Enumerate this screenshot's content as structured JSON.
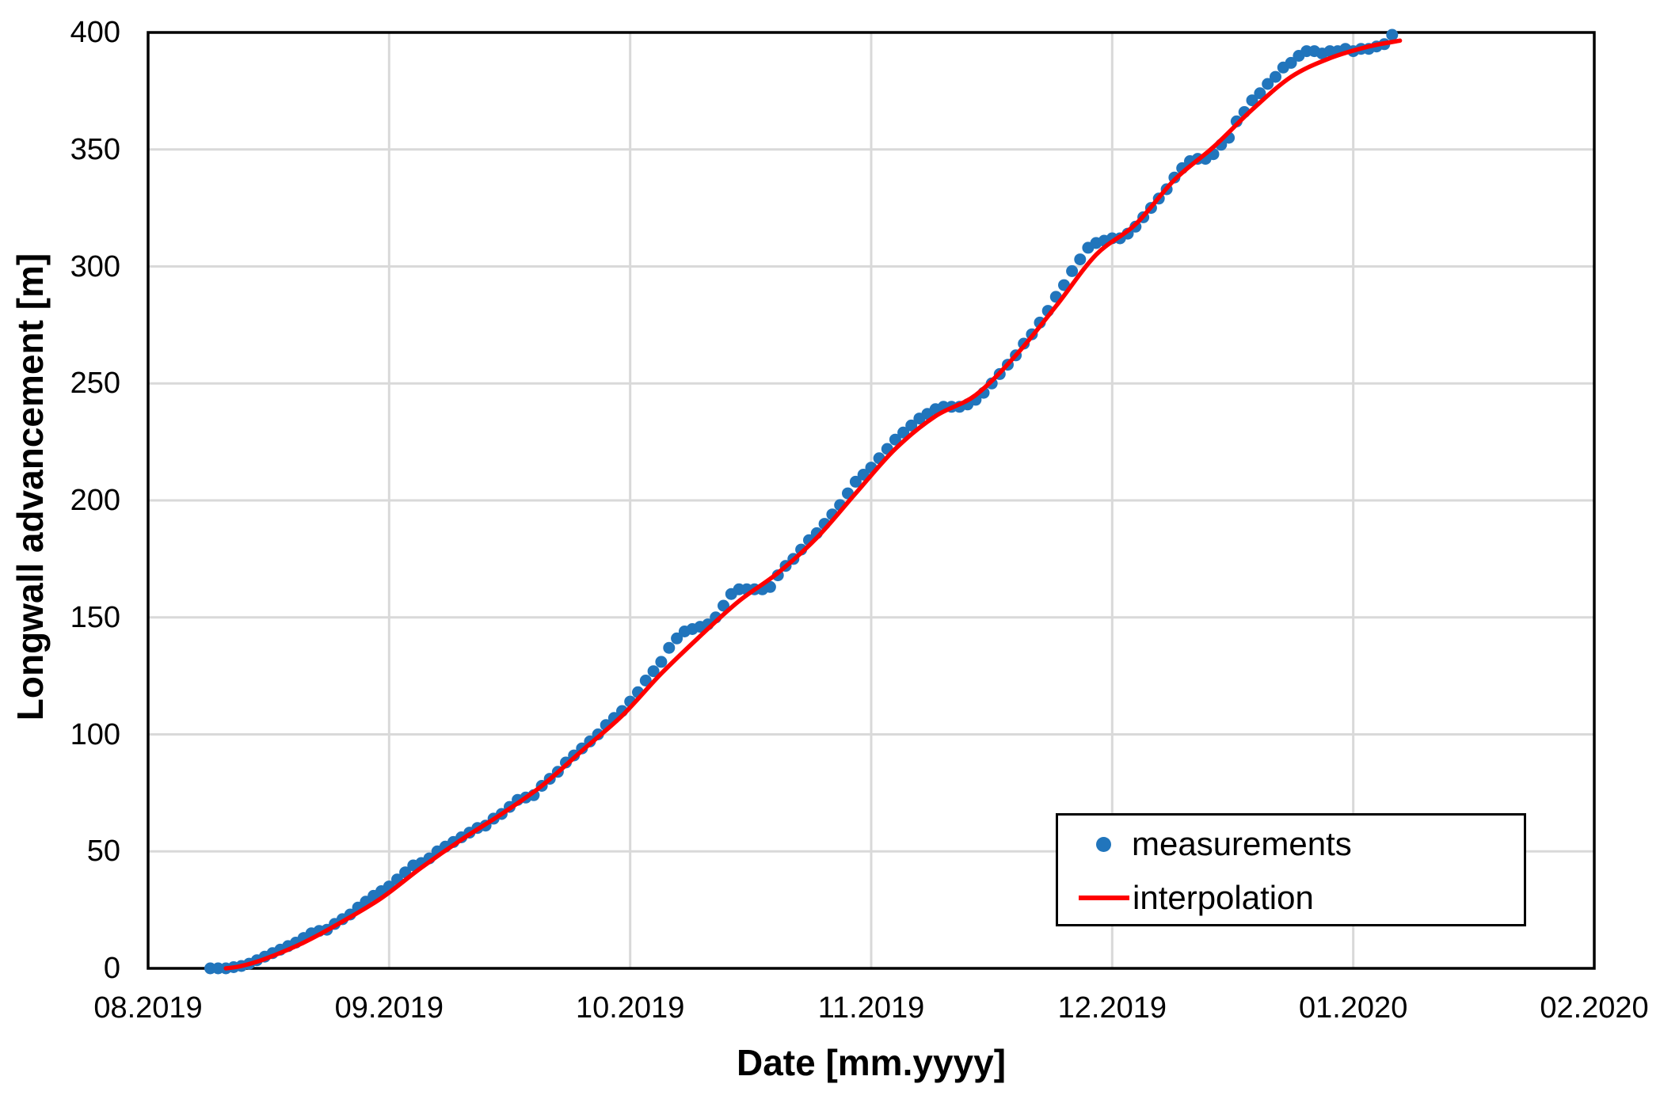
{
  "chart_data": {
    "type": "scatter",
    "title": "",
    "xlabel": "Date [mm.yyyy]",
    "ylabel": "Longwall advancement [m]",
    "x_ticks": [
      "08.2019",
      "09.2019",
      "10.2019",
      "11.2019",
      "12.2019",
      "01.2020",
      "02.2020"
    ],
    "y_ticks": [
      0,
      50,
      100,
      150,
      200,
      250,
      300,
      350,
      400
    ],
    "ylim": [
      0,
      400
    ],
    "grid": true,
    "colors": {
      "grid": "#D9D9D9",
      "axis": "#000000",
      "background": "#FFFFFF"
    },
    "legend": {
      "position": "inside-bottom-right",
      "entries": [
        {
          "label": "measurements",
          "marker": "dot",
          "color": "#2175BC"
        },
        {
          "label": "interpolation",
          "marker": "line",
          "color": "#FF0000"
        }
      ]
    },
    "series": [
      {
        "name": "measurements",
        "type": "scatter",
        "color": "#2175BC",
        "points": [
          [
            "2019-08-09",
            0
          ],
          [
            "2019-08-10",
            0
          ],
          [
            "2019-08-11",
            0
          ],
          [
            "2019-08-12",
            0.5
          ],
          [
            "2019-08-13",
            1
          ],
          [
            "2019-08-14",
            2
          ],
          [
            "2019-08-15",
            3.5
          ],
          [
            "2019-08-16",
            5
          ],
          [
            "2019-08-17",
            6.5
          ],
          [
            "2019-08-18",
            8
          ],
          [
            "2019-08-19",
            9.5
          ],
          [
            "2019-08-20",
            11
          ],
          [
            "2019-08-21",
            13
          ],
          [
            "2019-08-22",
            15
          ],
          [
            "2019-08-23",
            16
          ],
          [
            "2019-08-24",
            16.5
          ],
          [
            "2019-08-25",
            19
          ],
          [
            "2019-08-26",
            21
          ],
          [
            "2019-08-27",
            23
          ],
          [
            "2019-08-28",
            26
          ],
          [
            "2019-08-29",
            28.5
          ],
          [
            "2019-08-30",
            31
          ],
          [
            "2019-08-31",
            33
          ],
          [
            "2019-09-01",
            35
          ],
          [
            "2019-09-02",
            38
          ],
          [
            "2019-09-03",
            41
          ],
          [
            "2019-09-04",
            44
          ],
          [
            "2019-09-05",
            45
          ],
          [
            "2019-09-06",
            47
          ],
          [
            "2019-09-07",
            50
          ],
          [
            "2019-09-08",
            52
          ],
          [
            "2019-09-09",
            54
          ],
          [
            "2019-09-10",
            56
          ],
          [
            "2019-09-11",
            58
          ],
          [
            "2019-09-12",
            60
          ],
          [
            "2019-09-13",
            61
          ],
          [
            "2019-09-14",
            64
          ],
          [
            "2019-09-15",
            66
          ],
          [
            "2019-09-16",
            69
          ],
          [
            "2019-09-17",
            72
          ],
          [
            "2019-09-18",
            73
          ],
          [
            "2019-09-19",
            74
          ],
          [
            "2019-09-20",
            78
          ],
          [
            "2019-09-21",
            81
          ],
          [
            "2019-09-22",
            84
          ],
          [
            "2019-09-23",
            88
          ],
          [
            "2019-09-24",
            91
          ],
          [
            "2019-09-25",
            94
          ],
          [
            "2019-09-26",
            97
          ],
          [
            "2019-09-27",
            100
          ],
          [
            "2019-09-28",
            104
          ],
          [
            "2019-09-29",
            107
          ],
          [
            "2019-09-30",
            110
          ],
          [
            "2019-10-01",
            114
          ],
          [
            "2019-10-02",
            118
          ],
          [
            "2019-10-03",
            123
          ],
          [
            "2019-10-04",
            127
          ],
          [
            "2019-10-05",
            131
          ],
          [
            "2019-10-06",
            137
          ],
          [
            "2019-10-07",
            141
          ],
          [
            "2019-10-08",
            144
          ],
          [
            "2019-10-09",
            145
          ],
          [
            "2019-10-10",
            146
          ],
          [
            "2019-10-11",
            147
          ],
          [
            "2019-10-12",
            150
          ],
          [
            "2019-10-13",
            155
          ],
          [
            "2019-10-14",
            160
          ],
          [
            "2019-10-15",
            162
          ],
          [
            "2019-10-16",
            162
          ],
          [
            "2019-10-17",
            162
          ],
          [
            "2019-10-18",
            162
          ],
          [
            "2019-10-19",
            163
          ],
          [
            "2019-10-20",
            168
          ],
          [
            "2019-10-21",
            172
          ],
          [
            "2019-10-22",
            175
          ],
          [
            "2019-10-23",
            179
          ],
          [
            "2019-10-24",
            183
          ],
          [
            "2019-10-25",
            186
          ],
          [
            "2019-10-26",
            190
          ],
          [
            "2019-10-27",
            194
          ],
          [
            "2019-10-28",
            198
          ],
          [
            "2019-10-29",
            203
          ],
          [
            "2019-10-30",
            208
          ],
          [
            "2019-10-31",
            211
          ],
          [
            "2019-11-01",
            214
          ],
          [
            "2019-11-02",
            218
          ],
          [
            "2019-11-03",
            222
          ],
          [
            "2019-11-04",
            226
          ],
          [
            "2019-11-05",
            229
          ],
          [
            "2019-11-06",
            232
          ],
          [
            "2019-11-07",
            235
          ],
          [
            "2019-11-08",
            237
          ],
          [
            "2019-11-09",
            239
          ],
          [
            "2019-11-10",
            240
          ],
          [
            "2019-11-11",
            240
          ],
          [
            "2019-11-12",
            240
          ],
          [
            "2019-11-13",
            241
          ],
          [
            "2019-11-14",
            243
          ],
          [
            "2019-11-15",
            246
          ],
          [
            "2019-11-16",
            250
          ],
          [
            "2019-11-17",
            254
          ],
          [
            "2019-11-18",
            258
          ],
          [
            "2019-11-19",
            262
          ],
          [
            "2019-11-20",
            267
          ],
          [
            "2019-11-21",
            271
          ],
          [
            "2019-11-22",
            276
          ],
          [
            "2019-11-23",
            281
          ],
          [
            "2019-11-24",
            287
          ],
          [
            "2019-11-25",
            292
          ],
          [
            "2019-11-26",
            298
          ],
          [
            "2019-11-27",
            303
          ],
          [
            "2019-11-28",
            308
          ],
          [
            "2019-11-29",
            310
          ],
          [
            "2019-11-30",
            311
          ],
          [
            "2019-12-01",
            312
          ],
          [
            "2019-12-02",
            312
          ],
          [
            "2019-12-03",
            314
          ],
          [
            "2019-12-04",
            317
          ],
          [
            "2019-12-05",
            321
          ],
          [
            "2019-12-06",
            325
          ],
          [
            "2019-12-07",
            329
          ],
          [
            "2019-12-08",
            333
          ],
          [
            "2019-12-09",
            338
          ],
          [
            "2019-12-10",
            342
          ],
          [
            "2019-12-11",
            345
          ],
          [
            "2019-12-12",
            346
          ],
          [
            "2019-12-13",
            346
          ],
          [
            "2019-12-14",
            348
          ],
          [
            "2019-12-15",
            352
          ],
          [
            "2019-12-16",
            355
          ],
          [
            "2019-12-17",
            362
          ],
          [
            "2019-12-18",
            366
          ],
          [
            "2019-12-19",
            371
          ],
          [
            "2019-12-20",
            374
          ],
          [
            "2019-12-21",
            378
          ],
          [
            "2019-12-22",
            381
          ],
          [
            "2019-12-23",
            385
          ],
          [
            "2019-12-24",
            387
          ],
          [
            "2019-12-25",
            390
          ],
          [
            "2019-12-26",
            392
          ],
          [
            "2019-12-27",
            392
          ],
          [
            "2019-12-28",
            391
          ],
          [
            "2019-12-29",
            392
          ],
          [
            "2019-12-30",
            392
          ],
          [
            "2019-12-31",
            393
          ],
          [
            "2020-01-01",
            392
          ],
          [
            "2020-01-02",
            393
          ],
          [
            "2020-01-03",
            393
          ],
          [
            "2020-01-04",
            394
          ],
          [
            "2020-01-05",
            395
          ],
          [
            "2020-01-06",
            399
          ]
        ]
      },
      {
        "name": "interpolation",
        "type": "line",
        "color": "#FF0000",
        "points": [
          [
            "2019-08-11",
            0
          ],
          [
            "2019-08-13",
            1
          ],
          [
            "2019-08-16",
            4
          ],
          [
            "2019-08-21",
            11
          ],
          [
            "2019-08-26",
            20
          ],
          [
            "2019-08-31",
            30
          ],
          [
            "2019-09-05",
            43
          ],
          [
            "2019-09-10",
            55
          ],
          [
            "2019-09-15",
            66
          ],
          [
            "2019-09-20",
            78
          ],
          [
            "2019-09-25",
            93
          ],
          [
            "2019-09-30",
            108
          ],
          [
            "2019-10-05",
            126
          ],
          [
            "2019-10-10",
            142
          ],
          [
            "2019-10-15",
            157
          ],
          [
            "2019-10-20",
            169
          ],
          [
            "2019-10-25",
            184
          ],
          [
            "2019-10-30",
            203
          ],
          [
            "2019-11-04",
            222
          ],
          [
            "2019-11-09",
            236
          ],
          [
            "2019-11-14",
            245
          ],
          [
            "2019-11-19",
            262
          ],
          [
            "2019-11-24",
            283
          ],
          [
            "2019-11-29",
            305
          ],
          [
            "2019-12-04",
            318
          ],
          [
            "2019-12-09",
            337
          ],
          [
            "2019-12-14",
            351
          ],
          [
            "2019-12-19",
            367
          ],
          [
            "2019-12-24",
            381
          ],
          [
            "2019-12-29",
            389
          ],
          [
            "2020-01-03",
            394
          ],
          [
            "2020-01-07",
            396.5
          ]
        ]
      }
    ]
  }
}
